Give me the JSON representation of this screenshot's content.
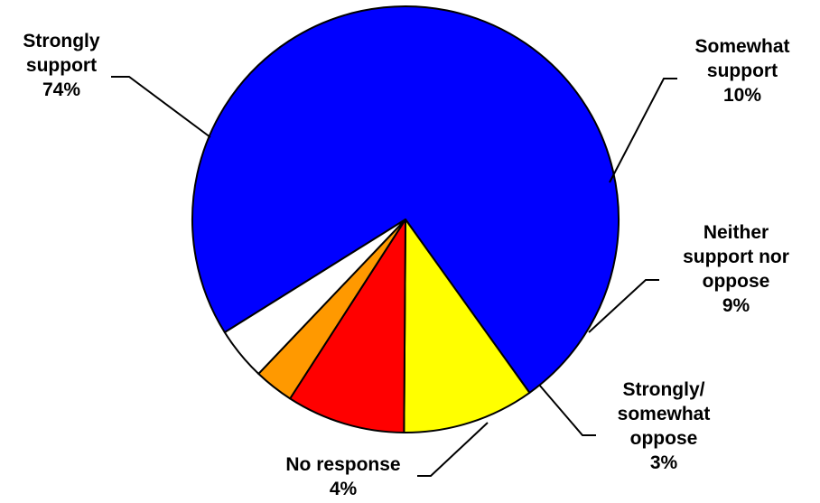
{
  "chart_data": {
    "type": "pie",
    "slices": [
      {
        "label": [
          "Strongly",
          "support"
        ],
        "value": 74,
        "value_label": "74%",
        "color": "#0000FF"
      },
      {
        "label": [
          "Somewhat",
          "support"
        ],
        "value": 10,
        "value_label": "10%",
        "color": "#FFFF00"
      },
      {
        "label": [
          "Neither",
          "support nor",
          "oppose"
        ],
        "value": 9,
        "value_label": "9%",
        "color": "#FF0000"
      },
      {
        "label": [
          "Strongly/",
          "somewhat",
          "oppose"
        ],
        "value": 3,
        "value_label": "3%",
        "color": "#FF9900"
      },
      {
        "label": [
          "No response"
        ],
        "value": 4,
        "value_label": "4%",
        "color": "#FFFFFF"
      }
    ],
    "legend": "none",
    "outline_color": "#000000"
  }
}
